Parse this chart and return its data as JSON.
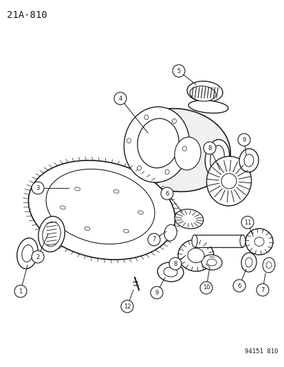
{
  "title": "21A-810",
  "footer": "94151 810",
  "bg": "#ffffff",
  "lc": "#1a1a1a",
  "fig_width": 4.14,
  "fig_height": 5.33,
  "dpi": 100
}
